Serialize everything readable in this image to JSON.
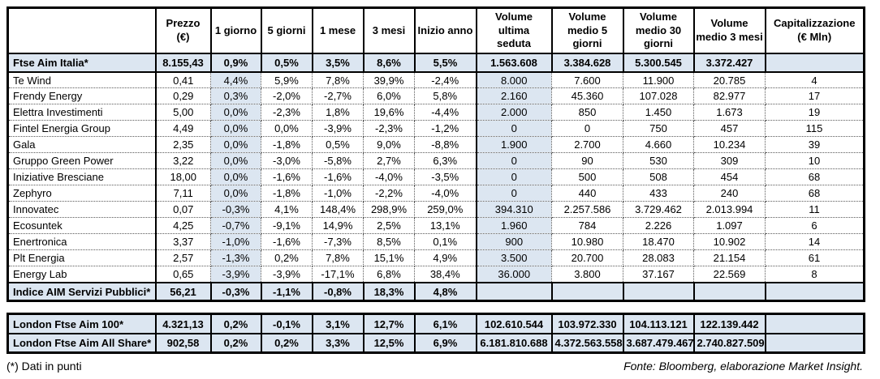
{
  "colors": {
    "row_highlight": "#dce6f1",
    "border": "#000000",
    "text": "#000000"
  },
  "footnotes": {
    "left": "(*) Dati in punti",
    "right": "Fonte: Bloomberg, elaborazione Market Insight."
  },
  "chart_data": {
    "type": "table",
    "columns": [
      "",
      "Prezzo\n(€)",
      "1 giorno",
      "5 giorni",
      "1 mese",
      "3 mesi",
      "Inizio anno",
      "Volume\nultima\nseduta",
      "Volume\nmedio 5\ngiorni",
      "Volume\nmedio 30\ngiorni",
      "Volume\nmedio 3 mesi",
      "Capitalizzazione\n(€ Mln)"
    ],
    "column_keys": [
      "prezzo",
      "1-giorno",
      "5-giorni",
      "1-mese",
      "3-mesi",
      "inizio-anno",
      "volume-ultima-seduta",
      "volume-medio-5-giorni",
      "volume-medio-30-giorni",
      "volume-medio-3-mesi",
      "capitalizzazione"
    ],
    "rows": [
      {
        "name": "Ftse Aim Italia*",
        "highlight": true,
        "values": [
          "8.155,43",
          "0,9%",
          "0,5%",
          "3,5%",
          "8,6%",
          "5,5%",
          "1.563.608",
          "3.384.628",
          "5.300.545",
          "3.372.427",
          ""
        ]
      },
      {
        "name": "Te Wind",
        "highlight": false,
        "values": [
          "0,41",
          "4,4%",
          "5,9%",
          "7,8%",
          "39,9%",
          "-2,4%",
          "8.000",
          "7.600",
          "11.900",
          "20.785",
          "4"
        ]
      },
      {
        "name": "Frendy Energy",
        "highlight": false,
        "values": [
          "0,29",
          "0,3%",
          "-2,0%",
          "-2,7%",
          "6,0%",
          "5,8%",
          "2.160",
          "45.360",
          "107.028",
          "82.977",
          "17"
        ]
      },
      {
        "name": "Elettra Investimenti",
        "highlight": false,
        "values": [
          "5,00",
          "0,0%",
          "-2,3%",
          "1,8%",
          "19,6%",
          "-4,4%",
          "2.000",
          "850",
          "1.450",
          "1.673",
          "19"
        ]
      },
      {
        "name": "Fintel Energia Group",
        "highlight": false,
        "values": [
          "4,49",
          "0,0%",
          "0,0%",
          "-3,9%",
          "-2,3%",
          "-1,2%",
          "0",
          "0",
          "750",
          "457",
          "115"
        ]
      },
      {
        "name": "Gala",
        "highlight": false,
        "values": [
          "2,35",
          "0,0%",
          "-1,8%",
          "0,5%",
          "9,0%",
          "-8,8%",
          "1.900",
          "2.700",
          "4.660",
          "10.234",
          "39"
        ]
      },
      {
        "name": "Gruppo Green Power",
        "highlight": false,
        "values": [
          "3,22",
          "0,0%",
          "-3,0%",
          "-5,8%",
          "2,7%",
          "6,3%",
          "0",
          "90",
          "530",
          "309",
          "10"
        ]
      },
      {
        "name": "Iniziative Bresciane",
        "highlight": false,
        "values": [
          "18,00",
          "0,0%",
          "-1,6%",
          "-1,6%",
          "-4,0%",
          "-3,5%",
          "0",
          "500",
          "508",
          "454",
          "68"
        ]
      },
      {
        "name": "Zephyro",
        "highlight": false,
        "values": [
          "7,11",
          "0,0%",
          "-1,8%",
          "-1,0%",
          "-2,2%",
          "-4,0%",
          "0",
          "440",
          "433",
          "240",
          "68"
        ]
      },
      {
        "name": "Innovatec",
        "highlight": false,
        "values": [
          "0,07",
          "-0,3%",
          "4,1%",
          "148,4%",
          "298,9%",
          "259,0%",
          "394.310",
          "2.257.586",
          "3.729.462",
          "2.013.994",
          "11"
        ]
      },
      {
        "name": "Ecosuntek",
        "highlight": false,
        "values": [
          "4,25",
          "-0,7%",
          "-9,1%",
          "14,9%",
          "2,5%",
          "13,1%",
          "1.960",
          "784",
          "2.226",
          "1.097",
          "6"
        ]
      },
      {
        "name": "Enertronica",
        "highlight": false,
        "values": [
          "3,37",
          "-1,0%",
          "-1,6%",
          "-7,3%",
          "8,5%",
          "0,1%",
          "900",
          "10.980",
          "18.470",
          "10.902",
          "14"
        ]
      },
      {
        "name": "Plt Energia",
        "highlight": false,
        "values": [
          "2,57",
          "-1,3%",
          "0,2%",
          "7,8%",
          "15,1%",
          "4,9%",
          "3.500",
          "20.700",
          "28.083",
          "21.154",
          "61"
        ]
      },
      {
        "name": "Energy Lab",
        "highlight": false,
        "values": [
          "0,65",
          "-3,9%",
          "-3,9%",
          "-17,1%",
          "6,8%",
          "38,4%",
          "36.000",
          "3.800",
          "37.167",
          "22.569",
          "8"
        ]
      },
      {
        "name": "Indice AIM Servizi Pubblici*",
        "highlight": true,
        "values": [
          "56,21",
          "-0,3%",
          "-1,1%",
          "-0,8%",
          "18,3%",
          "4,8%",
          "",
          "",
          "",
          "",
          ""
        ]
      }
    ],
    "london_rows": [
      {
        "name": "London Ftse Aim 100*",
        "highlight": true,
        "values": [
          "4.321,13",
          "0,2%",
          "-0,1%",
          "3,1%",
          "12,7%",
          "6,1%",
          "102.610.544",
          "103.972.330",
          "104.113.121",
          "122.139.442",
          ""
        ]
      },
      {
        "name": "London Ftse Aim All Share*",
        "highlight": true,
        "values": [
          "902,58",
          "0,2%",
          "0,2%",
          "3,3%",
          "12,5%",
          "6,9%",
          "6.181.810.688",
          "4.372.563.558",
          "3.687.479.467",
          "2.740.827.509",
          ""
        ]
      }
    ]
  }
}
